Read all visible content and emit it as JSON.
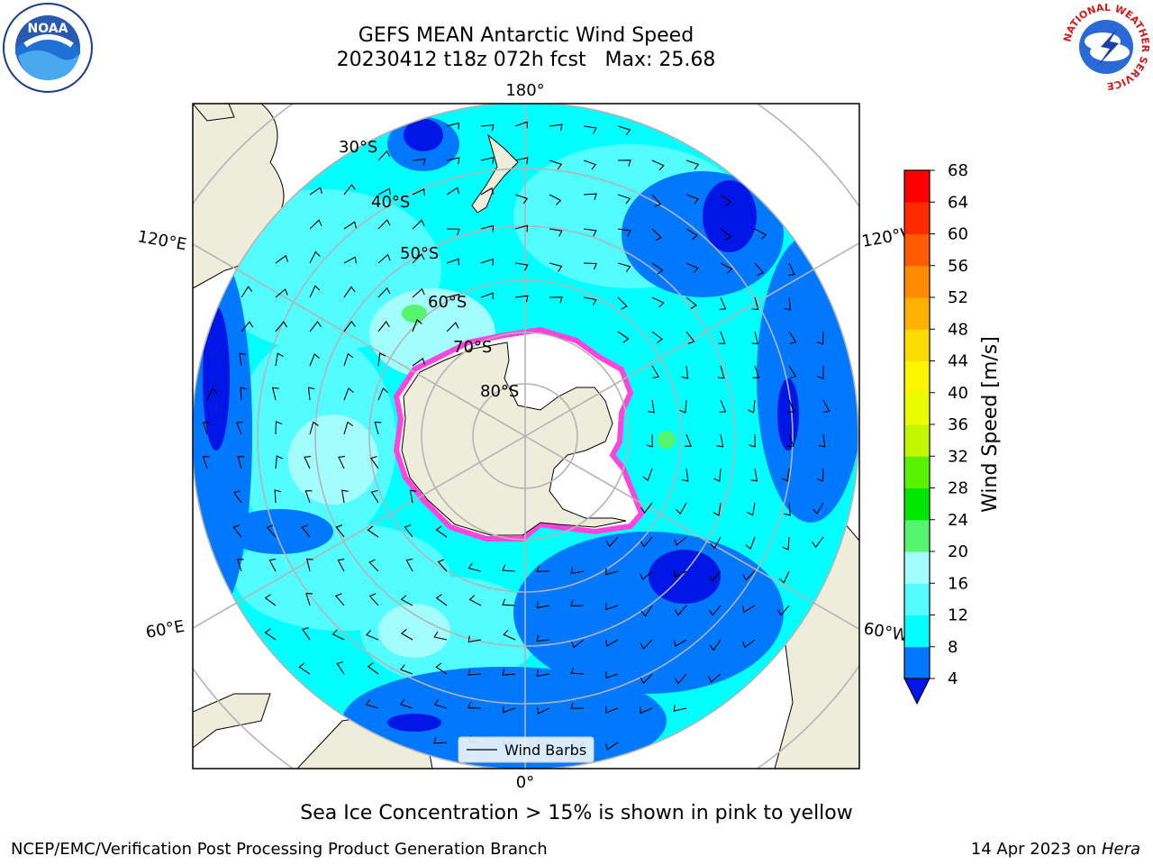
{
  "title": {
    "line1": "GEFS MEAN Antarctic Wind Speed",
    "line2": "20230412 t18z 072h fcst   Max: 25.68"
  },
  "map": {
    "projection": "south-polar-stereographic",
    "longitude_labels": {
      "top": "180°",
      "bottom": "0°",
      "left_upper": "120°E",
      "left_lower": "60°E",
      "right_upper": "120°W",
      "right_lower": "60°W"
    },
    "latitude_labels": [
      "30°S",
      "40°S",
      "50°S",
      "60°S",
      "70°S",
      "80°S"
    ],
    "legend_label": "Wind Barbs",
    "colors": {
      "land": "#eeecda",
      "antarctic_ice_shelf": "#ffffff",
      "sea_ice_edge": "#ff44dd",
      "grid": "#b4b4b4"
    }
  },
  "colorbar": {
    "label": "Wind Speed [m/s]",
    "ticks": [
      "4",
      "8",
      "12",
      "16",
      "20",
      "24",
      "28",
      "32",
      "36",
      "40",
      "44",
      "48",
      "52",
      "56",
      "60",
      "64",
      "68"
    ],
    "colors": [
      "#0016e6",
      "#0078ff",
      "#00ffff",
      "#53fcff",
      "#a4fdfd",
      "#55f56f",
      "#00e600",
      "#59f200",
      "#c3f700",
      "#ebfc00",
      "#fbf600",
      "#fbdc00",
      "#ffb000",
      "#ff8c00",
      "#ff5b00",
      "#ff2a00",
      "#ff0000"
    ],
    "extend_color": "#0016e6"
  },
  "chart_data": {
    "type": "heatmap",
    "title": "GEFS MEAN Antarctic Wind Speed",
    "subtitle": "20230412 t18z 072h fcst   Max: 25.68",
    "variable": "Wind Speed [m/s]",
    "max": 25.68,
    "colorbar_range": [
      4,
      68
    ],
    "colorbar_step": 4
  },
  "caption": "Sea Ice Concentration > 15% is shown in pink to yellow",
  "footer": {
    "left": "NCEP/EMC/Verification Post Processing Product Generation Branch",
    "right_prefix": "14 Apr 2023 on ",
    "right_host": "Hera"
  },
  "logos": {
    "noaa": "NOAA",
    "nws": "NATIONAL WEATHER SERVICE"
  }
}
